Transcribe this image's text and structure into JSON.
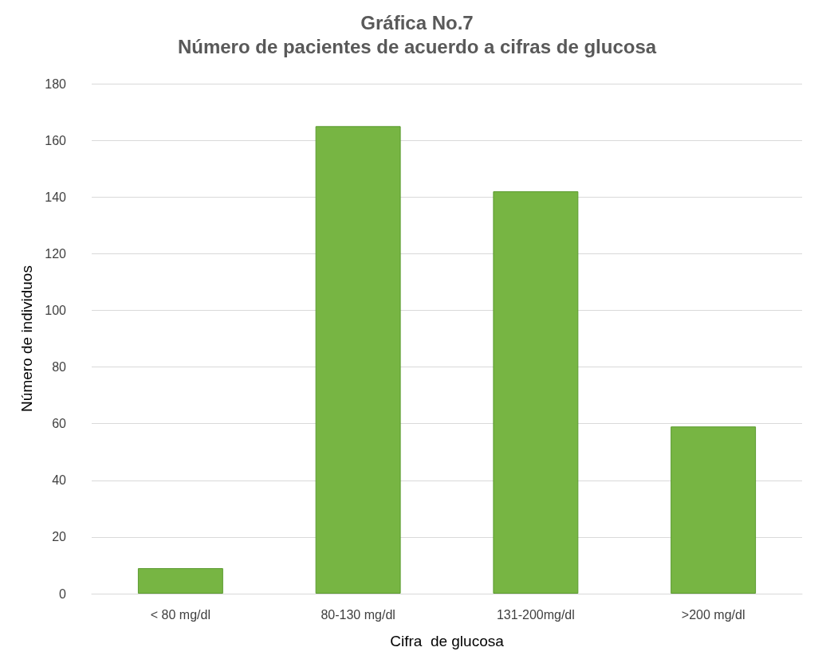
{
  "chart_data": {
    "type": "bar",
    "title": "Gráfica No.7\nNúmero de pacientes de acuerdo a cifras de glucosa",
    "xlabel": "Cifra  de glucosa",
    "ylabel": "Número de individuos",
    "categories": [
      "< 80 mg/dl",
      "80-130 mg/dl",
      "131-200mg/dl",
      ">200 mg/dl"
    ],
    "values": [
      9,
      165,
      142,
      59
    ],
    "color": "#77b543",
    "ylim": [
      0,
      180
    ],
    "yticks": [
      0,
      20,
      40,
      60,
      80,
      100,
      120,
      140,
      160,
      180
    ],
    "grid": "y"
  }
}
